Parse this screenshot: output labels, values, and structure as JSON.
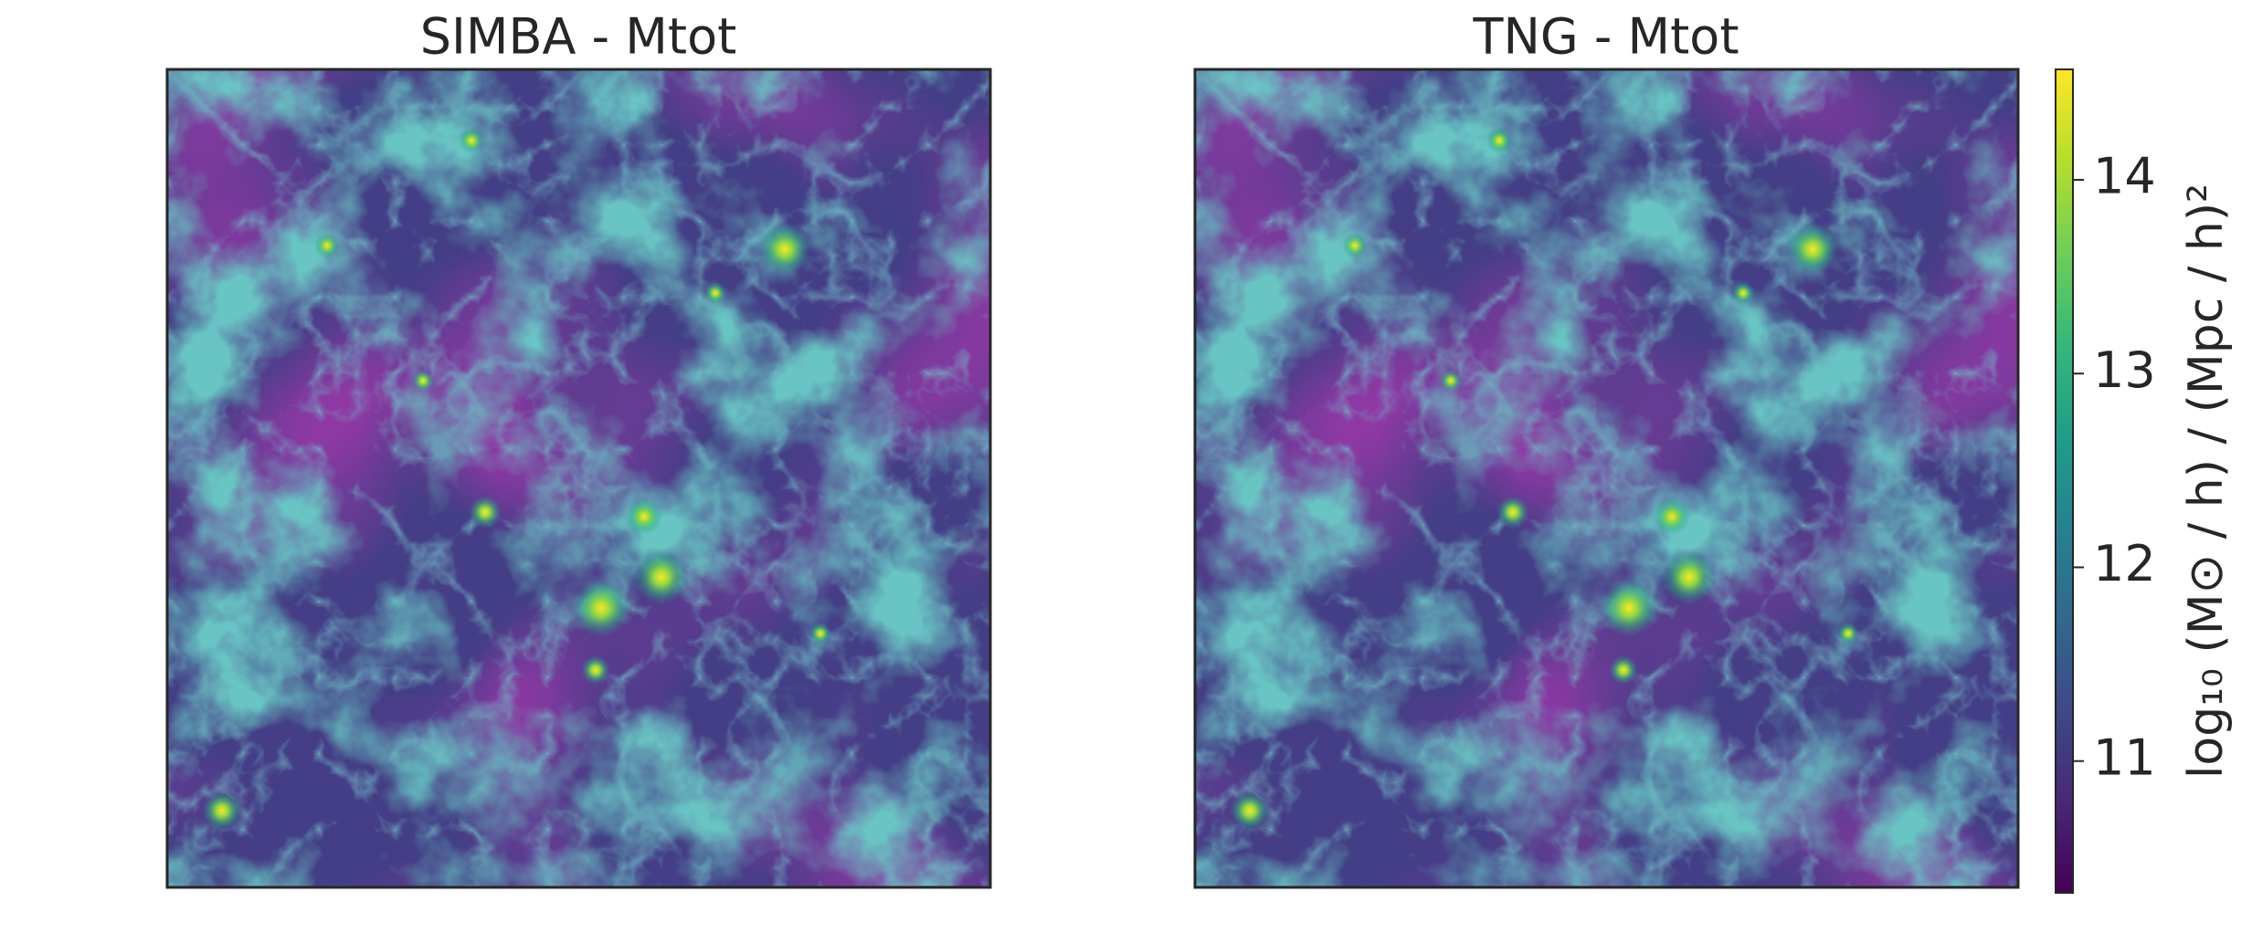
{
  "chart_data": [
    {
      "type": "image",
      "title": "SIMBA - Mtot"
    },
    {
      "type": "image",
      "title": "TNG - Mtot",
      "colorbar": {
        "label": "log₁₀ (M⊙ / h) / (Mpc / h)²",
        "colormap": "viridis",
        "lim": [
          10.32,
          14.57
        ],
        "ticks": [
          11,
          12,
          13,
          14
        ]
      }
    }
  ]
}
